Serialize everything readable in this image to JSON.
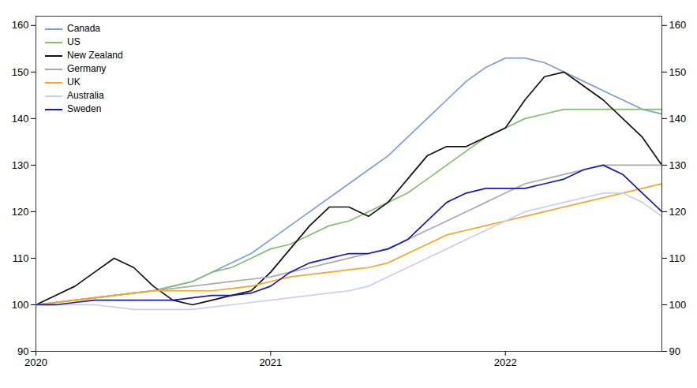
{
  "chart_data": {
    "type": "line",
    "x": [
      2020,
      2020.08334375,
      2020.1666875,
      2020.25003125,
      2020.333375,
      2020.41671875,
      2020.5000625,
      2020.58340625,
      2020.66675,
      2020.75009375,
      2020.8334375,
      2020.91678125,
      2021.000125,
      2021.08346875,
      2021.1668125,
      2021.25015625,
      2021.3335,
      2021.41684375,
      2021.5001875,
      2021.58353125,
      2021.666875,
      2021.75021875,
      2021.8335625,
      2021.91690625,
      2022.00025,
      2022.08359375,
      2022.1669375,
      2022.25028125,
      2022.333625,
      2022.41696875,
      2022.5003125,
      2022.58365625,
      2022.667
    ],
    "series": [
      {
        "name": "Canada",
        "color": "#7b9fd4",
        "values": [
          100,
          100.5,
          101,
          101.5,
          102,
          102.5,
          103,
          104,
          105,
          107,
          109,
          111,
          114,
          117,
          120,
          123,
          126,
          129,
          132,
          136,
          140,
          144,
          148,
          151,
          153,
          153,
          152,
          150,
          148,
          146,
          144,
          142,
          141
        ]
      },
      {
        "name": "US",
        "color": "#82be6e",
        "values": [
          100,
          100.5,
          101,
          101.5,
          102,
          102.5,
          103,
          104,
          105,
          107,
          108,
          110,
          112,
          113,
          115,
          117,
          118,
          120,
          122,
          124,
          127,
          130,
          133,
          136,
          138,
          140,
          141,
          142,
          142,
          142,
          142,
          142,
          142
        ]
      },
      {
        "name": "New Zealand",
        "color": "#111111",
        "values": [
          100,
          102,
          104,
          107,
          110,
          108,
          104,
          101,
          100,
          101,
          102,
          103,
          107,
          112,
          117,
          121,
          121,
          119,
          122,
          127,
          132,
          134,
          134,
          136,
          138,
          144,
          149,
          150,
          147,
          144,
          140,
          136,
          130
        ]
      },
      {
        "name": "Germany",
        "color": "#aaaaaa",
        "values": [
          100,
          100.5,
          101,
          101.5,
          102,
          102.5,
          103,
          103.5,
          104,
          104.5,
          105,
          105.5,
          106,
          107,
          108,
          109,
          110,
          111,
          112,
          114,
          116,
          118,
          120,
          122,
          124,
          126,
          127,
          128,
          129,
          130,
          130,
          130,
          130
        ]
      },
      {
        "name": "UK",
        "color": "#f5a623",
        "values": [
          100,
          100.5,
          101,
          101.5,
          102,
          102.5,
          103,
          103,
          103,
          103,
          103.5,
          104,
          105,
          106,
          106.5,
          107,
          107.5,
          108,
          109,
          111,
          113,
          115,
          116,
          117,
          118,
          119,
          120,
          121,
          122,
          123,
          124,
          125,
          126
        ]
      },
      {
        "name": "Australia",
        "color": "#c8cff0",
        "values": [
          100,
          100,
          100,
          100,
          99.5,
          99,
          99,
          99,
          99,
          99.5,
          100,
          100.5,
          101,
          101.5,
          102,
          102.5,
          103,
          104,
          106,
          108,
          110,
          112,
          114,
          116,
          118,
          120,
          121,
          122,
          123,
          124,
          124,
          122,
          119
        ]
      },
      {
        "name": "Sweden",
        "color": "#1a1aaa",
        "values": [
          100,
          100,
          100.5,
          101,
          101,
          101,
          101,
          101,
          101.5,
          102,
          102,
          102.5,
          104,
          107,
          109,
          110,
          111,
          111,
          112,
          114,
          118,
          122,
          124,
          125,
          125,
          125,
          126,
          127,
          129,
          130,
          128,
          124,
          120
        ]
      }
    ],
    "xlim": [
      2020,
      2022.667
    ],
    "xticks": [
      2020,
      2021,
      2022
    ],
    "ylim": [
      90,
      162
    ],
    "yticks": [
      90,
      100,
      110,
      120,
      130,
      140,
      150,
      160
    ],
    "grid": false,
    "legend": "upper left"
  }
}
